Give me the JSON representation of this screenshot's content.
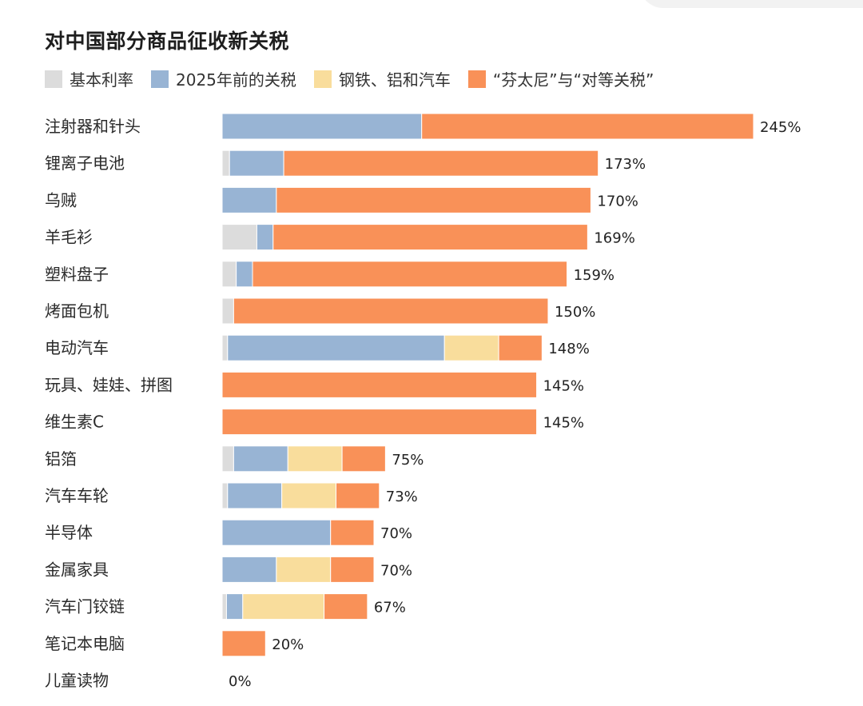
{
  "title": "对中国部分商品征收新关税",
  "colors": {
    "base": "#dcdcdc",
    "pre2025": "#98b4d4",
    "steel": "#f9dd9c",
    "fentanyl": "#f99158"
  },
  "legend": [
    {
      "key": "base",
      "label": "基本利率"
    },
    {
      "key": "pre2025",
      "label": "2025年前的关税"
    },
    {
      "key": "steel",
      "label": "钢铁、铝和汽车"
    },
    {
      "key": "fentanyl",
      "label": "“芬太尼”与“对等关税”"
    }
  ],
  "chart_data": {
    "type": "bar",
    "orientation": "horizontal",
    "stacked": true,
    "title": "对中国部分商品征收新关税",
    "categories": [
      "注射器和针头",
      "锂离子电池",
      "乌贼",
      "羊毛衫",
      "塑料盘子",
      "烤面包机",
      "电动汽车",
      "玩具、娃娃、拼图",
      "维生素C",
      "铝箔",
      "汽车车轮",
      "半导体",
      "金属家具",
      "汽车门铰链",
      "笔记本电脑",
      "儿童读物"
    ],
    "series": [
      {
        "name": "基本利率",
        "key": "base",
        "values": [
          0,
          3.4,
          0,
          16,
          6.5,
          5.3,
          2.5,
          0,
          0,
          5.3,
          2.5,
          0,
          0,
          2,
          0,
          0
        ]
      },
      {
        "name": "2025年前的关税",
        "key": "pre2025",
        "values": [
          92,
          25,
          25,
          7.5,
          7.5,
          0,
          100,
          0,
          0,
          25,
          25,
          50,
          25,
          7.5,
          0,
          0
        ]
      },
      {
        "name": "钢铁、铝和汽车",
        "key": "steel",
        "values": [
          0,
          0,
          0,
          0,
          0,
          0,
          25,
          0,
          0,
          25,
          25,
          0,
          25,
          37.5,
          0,
          0
        ]
      },
      {
        "name": "“芬太尼”与“对等关税”",
        "key": "fentanyl",
        "values": [
          153,
          145,
          145,
          145,
          145,
          145,
          20,
          145,
          145,
          20,
          20,
          20,
          20,
          20,
          20,
          0
        ]
      }
    ],
    "totals": [
      "245%",
      "173%",
      "170%",
      "169%",
      "159%",
      "150%",
      "148%",
      "145%",
      "145%",
      "75%",
      "73%",
      "70%",
      "70%",
      "67%",
      "20%",
      "0%"
    ],
    "xlim": [
      0,
      245
    ],
    "xlabel": "",
    "ylabel": "",
    "grid": false,
    "legend_position": "top-left"
  }
}
